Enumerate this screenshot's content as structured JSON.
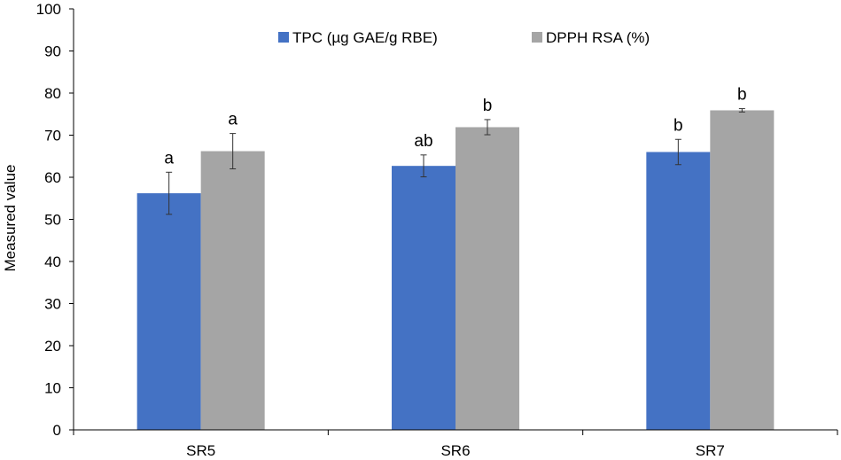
{
  "chart_data": {
    "type": "bar",
    "categories": [
      "SR5",
      "SR6",
      "SR7"
    ],
    "series": [
      {
        "name": "TPC (µg GAE/g RBE)",
        "color": "#4472c4",
        "values": [
          56.2,
          62.7,
          66.0
        ],
        "errors": [
          5.0,
          2.6,
          3.0
        ],
        "letters": [
          "a",
          "ab",
          "b"
        ]
      },
      {
        "name": "DPPH RSA (%)",
        "color": "#a5a5a5",
        "values": [
          66.2,
          71.9,
          75.9
        ],
        "errors": [
          4.2,
          1.8,
          0.4
        ],
        "letters": [
          "a",
          "b",
          "b"
        ]
      }
    ],
    "title": "",
    "xlabel": "",
    "ylabel": "Measured value",
    "ylim": [
      0,
      100
    ],
    "yticks": [
      "0",
      "10",
      "20",
      "30",
      "40",
      "50",
      "60",
      "70",
      "80",
      "90",
      "100"
    ],
    "grid": false,
    "legend_position": "top"
  }
}
